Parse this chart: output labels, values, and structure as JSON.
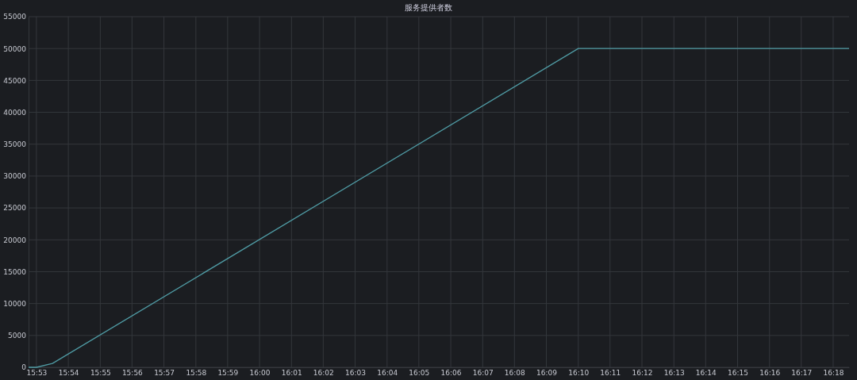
{
  "chart_data": {
    "type": "line",
    "title": "服务提供者数",
    "x": [
      15.8792,
      15.8833,
      15.8917,
      16.1667,
      16.3083
    ],
    "series": [
      {
        "color": "#4f9aa3",
        "values": [
          0,
          0,
          600,
          50000,
          50000
        ]
      }
    ],
    "xlim": [
      15.8792,
      16.3083
    ],
    "xticks": [
      {
        "value": 15.8833,
        "label": "15:53"
      },
      {
        "value": 15.9,
        "label": "15:54"
      },
      {
        "value": 15.9167,
        "label": "15:55"
      },
      {
        "value": 15.9333,
        "label": "15:56"
      },
      {
        "value": 15.95,
        "label": "15:57"
      },
      {
        "value": 15.9667,
        "label": "15:58"
      },
      {
        "value": 15.9833,
        "label": "15:59"
      },
      {
        "value": 16.0,
        "label": "16:00"
      },
      {
        "value": 16.0167,
        "label": "16:01"
      },
      {
        "value": 16.0333,
        "label": "16:02"
      },
      {
        "value": 16.05,
        "label": "16:03"
      },
      {
        "value": 16.0667,
        "label": "16:04"
      },
      {
        "value": 16.0833,
        "label": "16:05"
      },
      {
        "value": 16.1,
        "label": "16:06"
      },
      {
        "value": 16.1167,
        "label": "16:07"
      },
      {
        "value": 16.1333,
        "label": "16:08"
      },
      {
        "value": 16.15,
        "label": "16:09"
      },
      {
        "value": 16.1667,
        "label": "16:10"
      },
      {
        "value": 16.1833,
        "label": "16:11"
      },
      {
        "value": 16.2,
        "label": "16:12"
      },
      {
        "value": 16.2167,
        "label": "16:13"
      },
      {
        "value": 16.2333,
        "label": "16:14"
      },
      {
        "value": 16.25,
        "label": "16:15"
      },
      {
        "value": 16.2667,
        "label": "16:16"
      },
      {
        "value": 16.2833,
        "label": "16:17"
      },
      {
        "value": 16.3,
        "label": "16:18"
      }
    ],
    "ylim": [
      0,
      55000
    ],
    "yticks": [
      0,
      5000,
      10000,
      15000,
      20000,
      25000,
      30000,
      35000,
      40000,
      45000,
      50000,
      55000
    ],
    "grid": true,
    "marker": "none",
    "line_style": "solid"
  }
}
